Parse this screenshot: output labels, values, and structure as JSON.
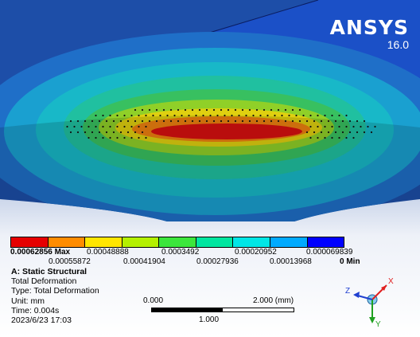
{
  "brand": {
    "name": "ANSYS",
    "version": "16.0"
  },
  "legend": {
    "colors": [
      "#e60000",
      "#ff8c00",
      "#ffe600",
      "#b4f000",
      "#3ce63c",
      "#00e6a0",
      "#00e6e6",
      "#00aaff",
      "#0000ff"
    ],
    "top_labels": [
      "0.00062856 Max",
      "0.00048888",
      "0.0003492",
      "0.00020952",
      "0.000069839"
    ],
    "bottom_labels": [
      "0.00055872",
      "0.00041904",
      "0.00027936",
      "0.00013968",
      "0 Min"
    ]
  },
  "info": {
    "title": "A: Static Structural",
    "lines": [
      "Total Deformation",
      "Type: Total Deformation",
      "Unit: mm",
      "Time: 0.004s",
      "2023/6/23 17:03"
    ]
  },
  "scale": {
    "left_label": "0.000",
    "right_label": "2.000 (mm)",
    "mid_label": "1.000"
  },
  "triad": {
    "x_label": "X",
    "y_label": "Y",
    "z_label": "Z",
    "x_color": "#e02020",
    "y_color": "#20a020",
    "z_color": "#2040d0"
  }
}
